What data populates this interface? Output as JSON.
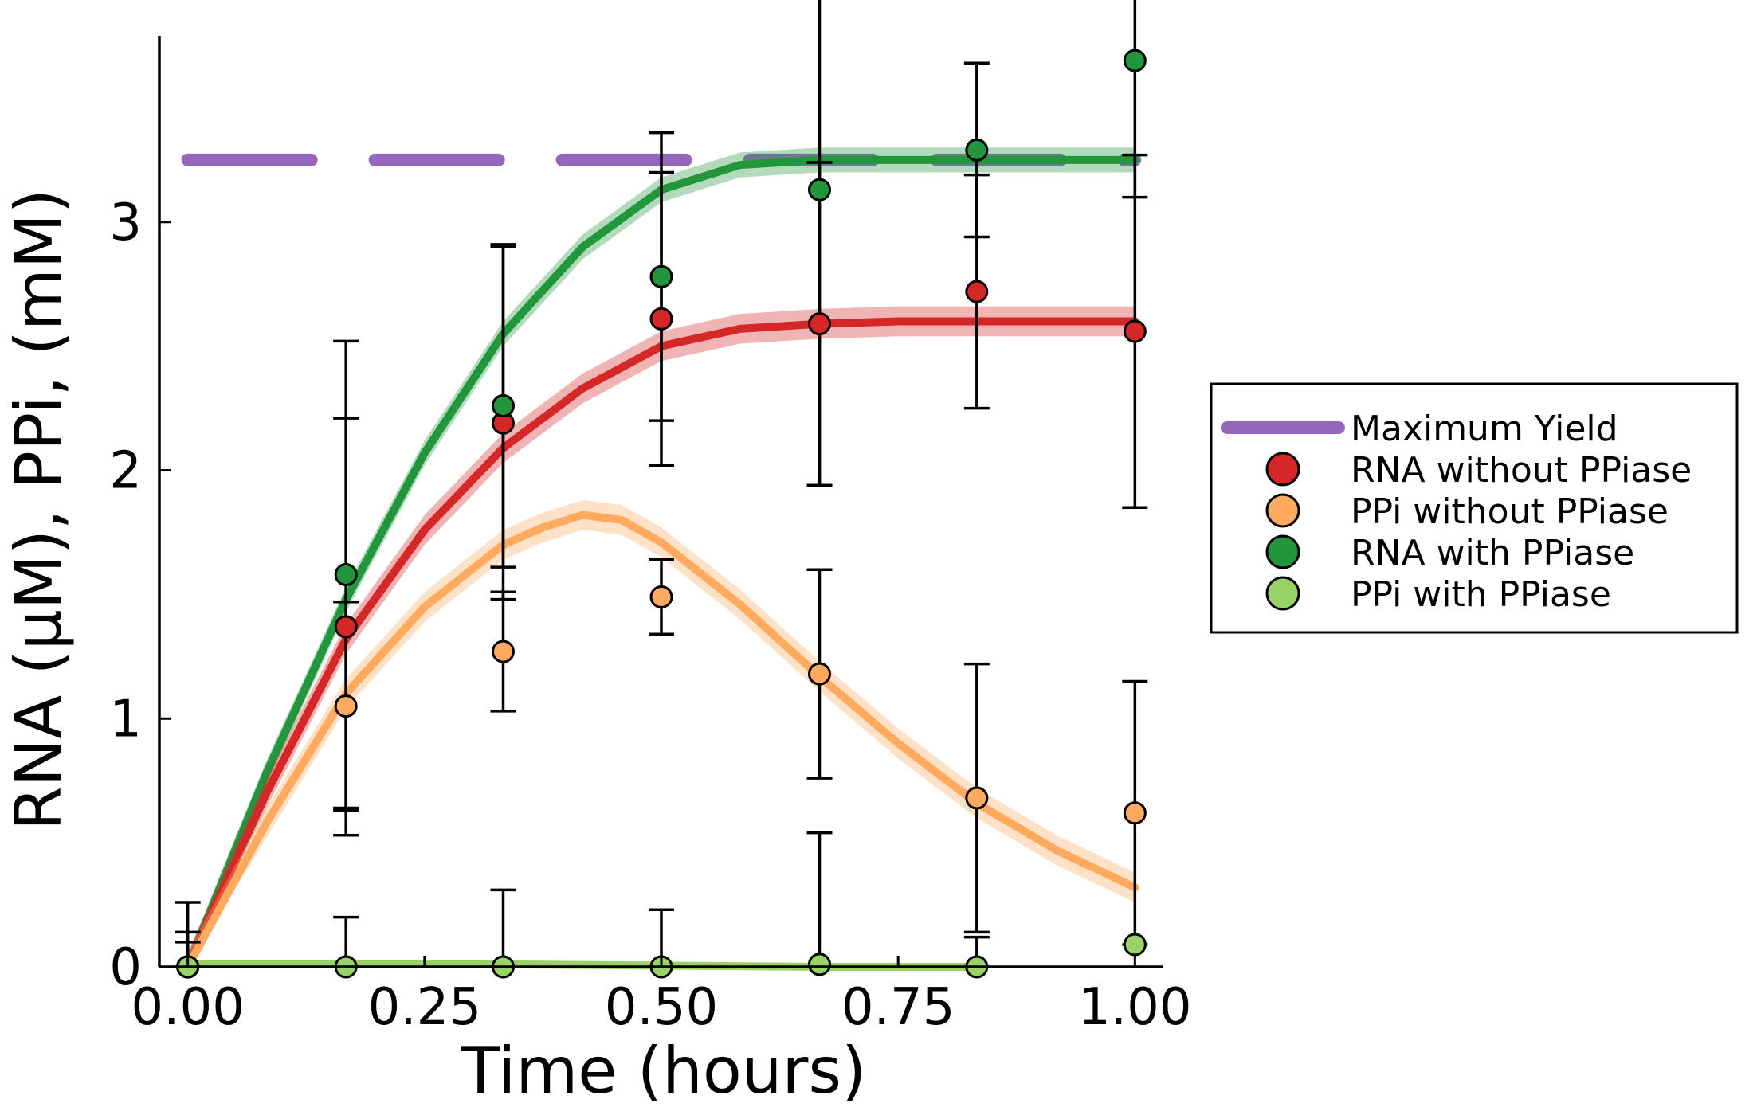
{
  "chart_data": {
    "type": "line",
    "xlabel": "Time (hours)",
    "ylabel": "RNA (μM), PPi, (mM)",
    "xlim": [
      -0.03,
      1.03
    ],
    "ylim": [
      0,
      3.75
    ],
    "xticks": [
      0.0,
      0.25,
      0.5,
      0.75,
      1.0
    ],
    "xtick_labels": [
      "0.00",
      "0.25",
      "0.50",
      "0.75",
      "1.00"
    ],
    "yticks": [
      0,
      1,
      2,
      3
    ],
    "ytick_labels": [
      "0",
      "1",
      "2",
      "3"
    ],
    "grid": false,
    "legend_position": "right",
    "colors": {
      "max_yield": "#9467bd",
      "rna_without": "#d62728",
      "ppi_without": "#ffaa5e",
      "rna_with": "#22963b",
      "ppi_with": "#98d365"
    },
    "legend": [
      {
        "label": "Maximum Yield",
        "kind": "line",
        "color": "#9467bd"
      },
      {
        "label": "RNA without PPiase",
        "kind": "marker",
        "color": "#d62728"
      },
      {
        "label": "PPi without PPiase",
        "kind": "marker",
        "color": "#ffaa5e"
      },
      {
        "label": "RNA with PPiase",
        "kind": "marker",
        "color": "#22963b"
      },
      {
        "label": "PPi with PPiase",
        "kind": "marker",
        "color": "#98d365"
      }
    ],
    "reference_line": {
      "name": "Maximum Yield",
      "y": 3.25,
      "x": [
        0.0,
        1.0
      ],
      "color": "#9467bd",
      "style": "dashed"
    },
    "fits": [
      {
        "name": "RNA with PPiase fit",
        "color": "#22963b",
        "band": 0.05,
        "x": [
          0.0,
          0.083,
          0.167,
          0.25,
          0.333,
          0.417,
          0.5,
          0.583,
          0.667,
          0.75,
          0.833,
          0.917,
          1.0
        ],
        "y": [
          0.0,
          0.78,
          1.48,
          2.07,
          2.55,
          2.9,
          3.13,
          3.23,
          3.25,
          3.25,
          3.25,
          3.25,
          3.25
        ]
      },
      {
        "name": "RNA without PPiase fit",
        "color": "#d62728",
        "band": 0.06,
        "x": [
          0.0,
          0.083,
          0.167,
          0.25,
          0.333,
          0.417,
          0.5,
          0.583,
          0.667,
          0.75,
          0.833,
          0.917,
          1.0
        ],
        "y": [
          0.0,
          0.7,
          1.32,
          1.76,
          2.09,
          2.33,
          2.5,
          2.57,
          2.59,
          2.6,
          2.6,
          2.6,
          2.6
        ]
      },
      {
        "name": "PPi without PPiase fit",
        "color": "#ffaa5e",
        "band": 0.06,
        "x": [
          0.0,
          0.083,
          0.167,
          0.25,
          0.333,
          0.375,
          0.417,
          0.458,
          0.5,
          0.583,
          0.667,
          0.75,
          0.833,
          0.917,
          1.0
        ],
        "y": [
          0.0,
          0.58,
          1.1,
          1.45,
          1.7,
          1.77,
          1.82,
          1.8,
          1.71,
          1.46,
          1.17,
          0.9,
          0.66,
          0.47,
          0.32
        ]
      },
      {
        "name": "PPi with PPiase fit",
        "color": "#98d365",
        "band": 0.0,
        "x": [
          0.0,
          0.333,
          0.667,
          0.833
        ],
        "y": [
          0.01,
          0.01,
          0.0,
          0.0
        ]
      }
    ],
    "series": [
      {
        "name": "RNA without PPiase",
        "color": "#d62728",
        "x": [
          0.0,
          0.167,
          0.333,
          0.5,
          0.667,
          0.833,
          1.0
        ],
        "y": [
          0.0,
          1.37,
          2.19,
          2.61,
          2.59,
          2.72,
          2.56
        ],
        "err": [
          0.14,
          0.84,
          0.71,
          0.59,
          0.65,
          0.47,
          0.71
        ]
      },
      {
        "name": "PPi without PPiase",
        "color": "#ffaa5e",
        "x": [
          0.0,
          0.167,
          0.333,
          0.5,
          0.667,
          0.833,
          1.0
        ],
        "y": [
          0.0,
          1.05,
          1.27,
          1.49,
          1.18,
          0.68,
          0.62
        ],
        "err": [
          0.1,
          0.42,
          0.24,
          0.15,
          0.42,
          0.54,
          0.53
        ]
      },
      {
        "name": "RNA with PPiase",
        "color": "#22963b",
        "x": [
          0.0,
          0.167,
          0.333,
          0.5,
          0.667,
          0.833,
          1.0
        ],
        "y": [
          0.0,
          1.58,
          2.26,
          2.78,
          3.13,
          3.29,
          3.65
        ],
        "err": [
          0.26,
          0.94,
          0.65,
          0.58,
          1.19,
          0.35,
          0.55
        ]
      },
      {
        "name": "PPi with PPiase",
        "color": "#98d365",
        "x": [
          0.0,
          0.167,
          0.333,
          0.5,
          0.667,
          0.833,
          1.0
        ],
        "y": [
          0.0,
          0.0,
          0.0,
          0.0,
          0.01,
          0.0,
          0.09
        ],
        "err": [
          0.0,
          0.2,
          0.31,
          0.23,
          0.53,
          0.12,
          0.0
        ]
      }
    ]
  }
}
